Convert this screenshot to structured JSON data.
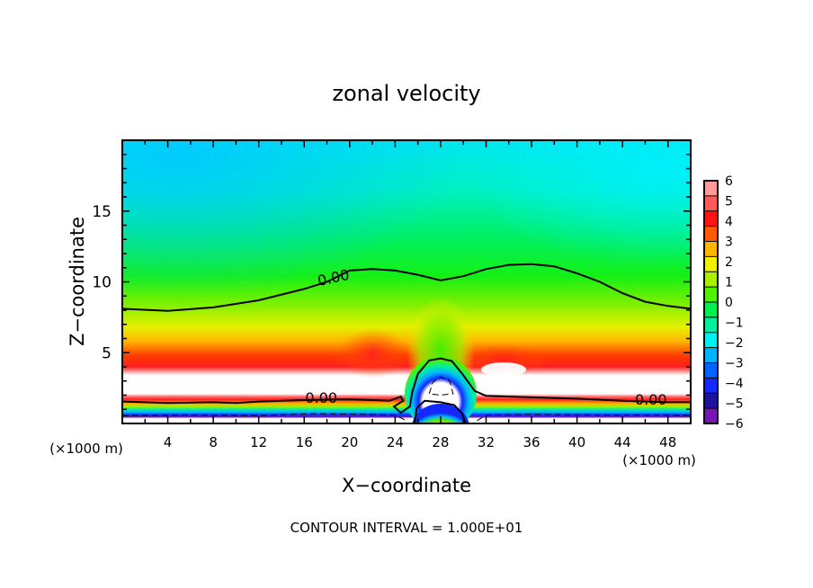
{
  "chart_data": {
    "type": "heatmap",
    "subtype": "filled-contour",
    "title": "zonal velocity",
    "xlabel": "X−coordinate",
    "ylabel": "Z−coordinate",
    "x_units_label": "(×1000 m)",
    "y_units_label": "(×1000 m)",
    "footer": "CONTOUR INTERVAL = 1.000E+01",
    "xlim": [
      0,
      50
    ],
    "ylim": [
      0,
      20
    ],
    "x_ticks": [
      4,
      8,
      12,
      16,
      20,
      24,
      28,
      32,
      36,
      40,
      44,
      48
    ],
    "x_minor_step": 2,
    "y_ticks": [
      5,
      10,
      15
    ],
    "y_minor_step": 1,
    "grid": false,
    "colorbar": {
      "placement": "right",
      "tick_labels": [
        "6",
        "5",
        "4",
        "3",
        "2",
        "1",
        "0",
        "−1",
        "−2",
        "−3",
        "−4",
        "−5",
        "−6"
      ],
      "range": [
        -6,
        6
      ],
      "bands_top_to_bottom": [
        "#ff9a9a",
        "#ff5a5a",
        "#ff1414",
        "#ff5a00",
        "#ffb400",
        "#f0f000",
        "#a8f000",
        "#50f000",
        "#00f050",
        "#00f0a0",
        "#00f0f0",
        "#00b4ff",
        "#0064ff",
        "#1428ff",
        "#1e14a0",
        "#7814b4"
      ]
    },
    "zero_contour_labels": [
      {
        "text": "0.00",
        "x": 18.6,
        "z": 10.2
      },
      {
        "text": "0.00",
        "x": 17.5,
        "z": 1.7
      },
      {
        "text": "0.00",
        "x": 46.5,
        "z": 1.6
      }
    ],
    "zero_contours": [
      {
        "name": "upper-zero-contour",
        "points": [
          [
            0,
            8.1
          ],
          [
            4,
            7.95
          ],
          [
            8,
            8.2
          ],
          [
            12,
            8.7
          ],
          [
            16,
            9.5
          ],
          [
            18,
            10.0
          ],
          [
            20,
            10.8
          ],
          [
            22,
            10.9
          ],
          [
            24,
            10.8
          ],
          [
            26,
            10.5
          ],
          [
            28,
            10.1
          ],
          [
            30,
            10.4
          ],
          [
            32,
            10.9
          ],
          [
            34,
            11.2
          ],
          [
            36,
            11.25
          ],
          [
            38,
            11.1
          ],
          [
            40,
            10.6
          ],
          [
            42,
            10.0
          ],
          [
            44,
            9.2
          ],
          [
            46,
            8.6
          ],
          [
            48,
            8.3
          ],
          [
            50,
            8.1
          ]
        ]
      },
      {
        "name": "lower-zero-contour-left",
        "points": [
          [
            0,
            1.55
          ],
          [
            4,
            1.45
          ],
          [
            8,
            1.5
          ],
          [
            10,
            1.45
          ],
          [
            12,
            1.55
          ],
          [
            16,
            1.65
          ],
          [
            20,
            1.7
          ],
          [
            22,
            1.65
          ],
          [
            23.5,
            1.6
          ],
          [
            24.5,
            1.9
          ],
          [
            24.7,
            1.6
          ],
          [
            23.9,
            1.2
          ],
          [
            24.5,
            0.75
          ],
          [
            25.3,
            1.2
          ],
          [
            25.5,
            2.2
          ],
          [
            26,
            3.5
          ],
          [
            27,
            4.45
          ],
          [
            28,
            4.6
          ],
          [
            29,
            4.4
          ],
          [
            30,
            3.4
          ],
          [
            31,
            2.3
          ],
          [
            32,
            1.95
          ],
          [
            36,
            1.85
          ],
          [
            40,
            1.75
          ],
          [
            44,
            1.6
          ],
          [
            48,
            1.5
          ],
          [
            50,
            1.5
          ]
        ]
      },
      {
        "name": "inner-zero-contour",
        "points": [
          [
            25.7,
            0
          ],
          [
            25.9,
            1.1
          ],
          [
            26.6,
            1.6
          ],
          [
            28,
            1.5
          ],
          [
            29.2,
            1.3
          ],
          [
            29.9,
            0.7
          ],
          [
            30.2,
            0
          ]
        ]
      }
    ],
    "dashed_contours": [
      {
        "name": "negative-contour-left",
        "points": [
          [
            0,
            0.55
          ],
          [
            6,
            0.6
          ],
          [
            12,
            0.55
          ],
          [
            17,
            0.7
          ],
          [
            21,
            0.65
          ],
          [
            24,
            0.6
          ],
          [
            25,
            0.2
          ]
        ]
      },
      {
        "name": "negative-contour-right",
        "points": [
          [
            31.2,
            0.2
          ],
          [
            32,
            0.6
          ],
          [
            36,
            0.65
          ],
          [
            42,
            0.6
          ],
          [
            48,
            0.6
          ],
          [
            50,
            0.55
          ]
        ]
      },
      {
        "name": "negative-contour-cell",
        "points": [
          [
            27,
            2.1
          ],
          [
            27.3,
            2.9
          ],
          [
            28,
            3.3
          ],
          [
            28.8,
            3.0
          ],
          [
            29.1,
            2.1
          ],
          [
            28,
            2.0
          ],
          [
            27,
            2.1
          ]
        ]
      }
    ]
  }
}
